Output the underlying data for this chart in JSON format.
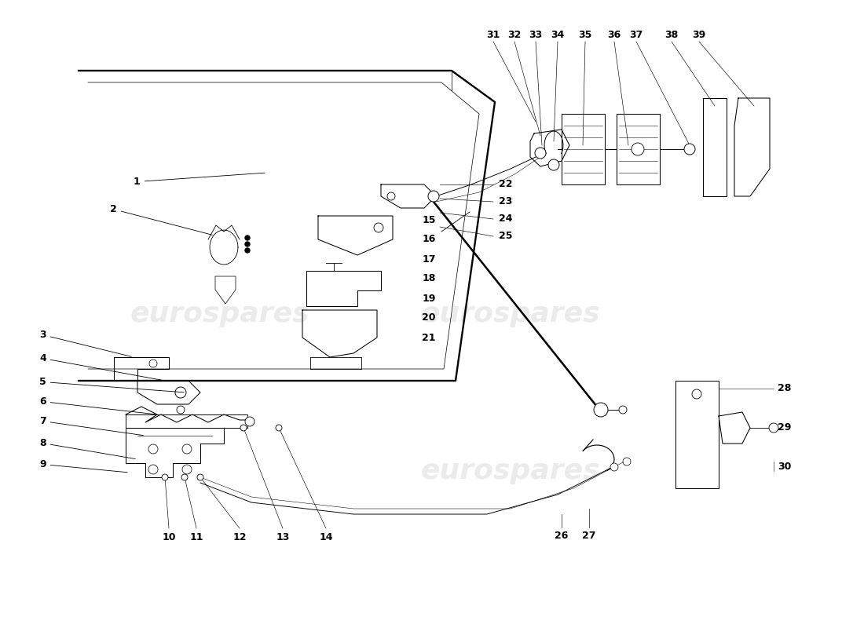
{
  "background_color": "#ffffff",
  "line_color": "#000000",
  "watermark_text": "eurospares",
  "watermark_color": "#cccccc",
  "watermark_alpha": 0.38,
  "watermark_fontsize": 26,
  "font_size": 9,
  "font_weight": "bold"
}
